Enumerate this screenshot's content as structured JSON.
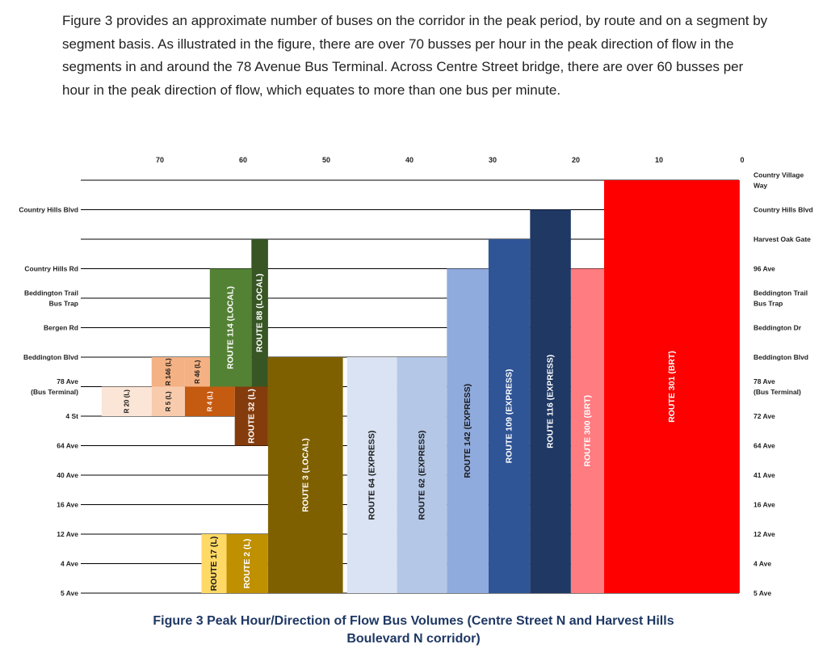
{
  "intro_paragraph": "Figure 3 provides an approximate number of buses on the corridor in the peak period, by route and on a segment by segment basis. As illustrated in the figure, there are over 70 busses per hour in the peak direction of flow in the segments in and around the 78 Avenue Bus Terminal. Across Centre Street bridge, there are over 60 busses per hour in the peak direction of flow, which equates to more than one bus per minute.",
  "caption": {
    "line1": "Figure 3 Peak Hour/Direction of Flow Bus Volumes (Centre Street N and Harvest Hills",
    "line2": "Boulevard N corridor)"
  },
  "chart_data": {
    "type": "bar",
    "orientation": "stacked-horizontal-by-segment",
    "title": "Figure 3 Peak Hour/Direction of Flow Bus Volumes (Centre Street N and Harvest Hills Boulevard N corridor)",
    "x_ticks": [
      70,
      60,
      50,
      40,
      30,
      20,
      10,
      0
    ],
    "xlim": [
      0,
      80
    ],
    "x_direction": "right-to-left",
    "grid": true,
    "left_labels": [
      {
        "row": 1,
        "text": "Country Hills Blvd"
      },
      {
        "row": 3,
        "text": "Country Hills Rd"
      },
      {
        "row": 4,
        "text": "Beddington Trail\nBus Trap"
      },
      {
        "row": 5,
        "text": "Bergen Rd"
      },
      {
        "row": 6,
        "text": "Beddington Blvd"
      },
      {
        "row": 7,
        "text": "78 Ave\n(Bus Terminal)"
      },
      {
        "row": 8,
        "text": "4 St"
      },
      {
        "row": 9,
        "text": "64 Ave"
      },
      {
        "row": 10,
        "text": "40 Ave"
      },
      {
        "row": 11,
        "text": "16 Ave"
      },
      {
        "row": 12,
        "text": "12 Ave"
      },
      {
        "row": 13,
        "text": "4 Ave"
      },
      {
        "row": 14,
        "text": "5 Ave"
      }
    ],
    "right_labels": [
      {
        "row": 0,
        "text": "Country Village\nWay"
      },
      {
        "row": 1,
        "text": "Country Hills Blvd"
      },
      {
        "row": 2,
        "text": "Harvest Oak Gate"
      },
      {
        "row": 3,
        "text": "96 Ave"
      },
      {
        "row": 4,
        "text": "Beddington Trail\nBus Trap"
      },
      {
        "row": 5,
        "text": "Beddington Dr"
      },
      {
        "row": 6,
        "text": "Beddington Blvd"
      },
      {
        "row": 7,
        "text": "78 Ave\n(Bus Terminal)"
      },
      {
        "row": 8,
        "text": "72 Ave"
      },
      {
        "row": 9,
        "text": "64 Ave"
      },
      {
        "row": 10,
        "text": "41 Ave"
      },
      {
        "row": 11,
        "text": "16 Ave"
      },
      {
        "row": 12,
        "text": "12 Ave"
      },
      {
        "row": 13,
        "text": "4 Ave"
      },
      {
        "row": 14,
        "text": "5 Ave"
      }
    ],
    "routes": [
      {
        "name": "ROUTE 301 (BRT)",
        "start": 0.3,
        "end": 16.6,
        "from_row": 0,
        "to_row": 14,
        "color": "#ff0000",
        "text_color": "#ffffff"
      },
      {
        "name": "ROUTE 300 (BRT)",
        "start": 16.6,
        "end": 20.6,
        "from_row": 3,
        "to_row": 14,
        "color": "#ff7c80",
        "text_color": "#ffffff"
      },
      {
        "name": "ROUTE 116 (EXPRESS)",
        "start": 20.6,
        "end": 25.5,
        "from_row": 1,
        "to_row": 14,
        "color": "#1f3864",
        "text_color": "#ffffff"
      },
      {
        "name": "ROUTE 109 (EXPRESS)",
        "start": 25.5,
        "end": 30.5,
        "from_row": 2,
        "to_row": 14,
        "color": "#2f5597",
        "text_color": "#ffffff"
      },
      {
        "name": "ROUTE 142 (EXPRESS)",
        "start": 30.5,
        "end": 35.5,
        "from_row": 3,
        "to_row": 14,
        "color": "#8faadc",
        "text_color": "#1a1a1a"
      },
      {
        "name": "ROUTE 62 (EXPRESS)",
        "start": 35.5,
        "end": 41.5,
        "from_row": 6,
        "to_row": 14,
        "color": "#b4c7e7",
        "text_color": "#1a1a1a"
      },
      {
        "name": "ROUTE 64 (EXPRESS)",
        "start": 41.5,
        "end": 47.5,
        "from_row": 6,
        "to_row": 14,
        "color": "#dae3f3",
        "text_color": "#1a1a1a"
      },
      {
        "name": "ROUTE 3 (LOCAL)",
        "start": 48.0,
        "end": 57.0,
        "from_row": 6,
        "to_row": 14,
        "color": "#7f6000",
        "text_color": "#ffffff"
      },
      {
        "name": "ROUTE 2 (L)",
        "start": 57.0,
        "end": 62.0,
        "from_row": 12,
        "to_row": 14,
        "color": "#bf9000",
        "text_color": "#ffffff"
      },
      {
        "name": "ROUTE 17 (L)",
        "start": 62.0,
        "end": 65.0,
        "from_row": 12,
        "to_row": 14,
        "color": "#ffd966",
        "text_color": "#1a1a1a"
      },
      {
        "name": "ROUTE 32 (L)",
        "start": 57.0,
        "end": 61.0,
        "from_row": 7,
        "to_row": 9,
        "color": "#843c0c",
        "text_color": "#ffffff"
      },
      {
        "name": "ROUTE 88 (LOCAL)",
        "start": 57.0,
        "end": 59.0,
        "from_row": 2,
        "to_row": 7,
        "color": "#375623",
        "text_color": "#ffffff"
      },
      {
        "name": "ROUTE 114 (LOCAL)",
        "start": 59.0,
        "end": 64.0,
        "from_row": 3,
        "to_row": 7,
        "color": "#548235",
        "text_color": "#ffffff"
      },
      {
        "name": "R 4 (L)",
        "start": 61.0,
        "end": 67.0,
        "from_row": 7,
        "to_row": 8,
        "color": "#c55a11",
        "text_color": "#ffffff"
      },
      {
        "name": "R 46 (L)",
        "start": 64.0,
        "end": 67.0,
        "from_row": 6,
        "to_row": 7,
        "color": "#f4b183",
        "text_color": "#1a1a1a"
      },
      {
        "name": "R 146 (L)",
        "start": 67.0,
        "end": 71.0,
        "from_row": 6,
        "to_row": 7,
        "color": "#f4b183",
        "text_color": "#1a1a1a"
      },
      {
        "name": "R 5 (L)",
        "start": 67.0,
        "end": 71.0,
        "from_row": 7,
        "to_row": 8,
        "color": "#f8cbad",
        "text_color": "#1a1a1a"
      },
      {
        "name": "R 20 (L)",
        "start": 71.0,
        "end": 77.0,
        "from_row": 7,
        "to_row": 8,
        "color": "#fbe5d6",
        "text_color": "#1a1a1a"
      }
    ]
  }
}
